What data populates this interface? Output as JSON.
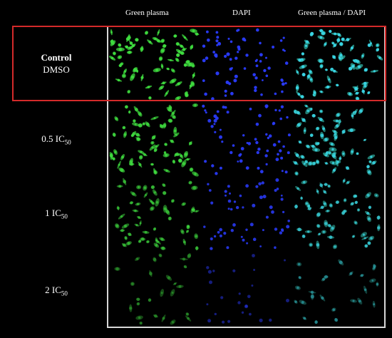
{
  "columns": [
    {
      "label": "Green plasma",
      "channel": "green"
    },
    {
      "label": "DAPI",
      "channel": "dapi"
    },
    {
      "label": "Green plasma / DAPI",
      "channel": "merge"
    }
  ],
  "rows": [
    {
      "title": "Control",
      "subtitle": "DMSO",
      "id": "control",
      "green_intensity": 1.0,
      "dapi_intensity": 1.0,
      "cell_density": 1.0
    },
    {
      "title": "0.5 IC",
      "subscript": "50",
      "id": "ic05",
      "green_intensity": 0.8,
      "dapi_intensity": 0.95,
      "cell_density": 0.95
    },
    {
      "title": "1 IC",
      "subscript": "50",
      "id": "ic1",
      "green_intensity": 0.5,
      "dapi_intensity": 0.85,
      "cell_density": 0.8
    },
    {
      "title": "2 IC",
      "subscript": "50",
      "id": "ic2",
      "green_intensity": 0.15,
      "dapi_intensity": 0.3,
      "cell_density": 0.35
    }
  ],
  "colors": {
    "background": "#000000",
    "highlight_frame": "#d42a2a",
    "grid_frame": "#d8d8d8",
    "green": "#3fdc3f",
    "dapi": "#2a3cff",
    "merge": "#3ad6e8",
    "text": "#ffffff"
  }
}
